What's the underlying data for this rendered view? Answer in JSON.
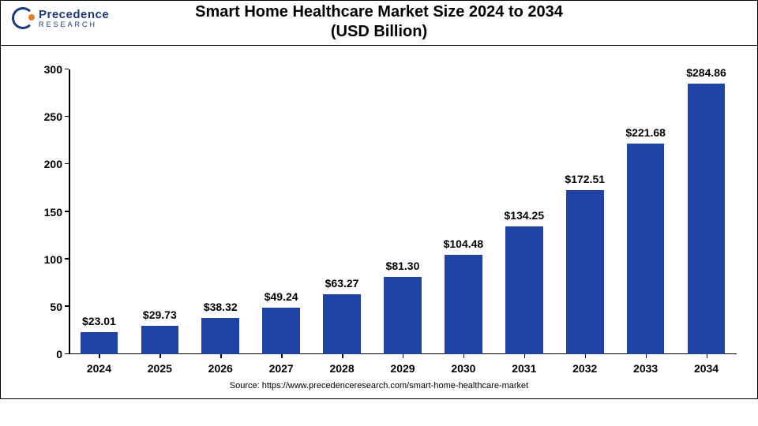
{
  "logo": {
    "line1": "Precedence",
    "line2": "RESEARCH"
  },
  "title_line1": "Smart Home Healthcare Market Size 2024 to 2034",
  "title_line2": "(USD Billion)",
  "title_fontsize": 20,
  "source": "Source: https://www.precedenceresearch.com/smart-home-healthcare-market",
  "chart": {
    "type": "bar",
    "categories": [
      "2024",
      "2025",
      "2026",
      "2027",
      "2028",
      "2029",
      "2030",
      "2031",
      "2032",
      "2033",
      "2034"
    ],
    "values": [
      23.01,
      29.73,
      38.32,
      49.24,
      63.27,
      81.3,
      104.48,
      134.25,
      172.51,
      221.68,
      284.86
    ],
    "value_labels": [
      "$23.01",
      "$29.73",
      "$38.32",
      "$49.24",
      "$63.27",
      "$81.30",
      "$104.48",
      "$134.25",
      "$172.51",
      "$221.68",
      "$284.86"
    ],
    "bar_color": "#2142a6",
    "ylim": [
      0,
      300
    ],
    "ytick_step": 50,
    "yticks": [
      0,
      50,
      100,
      150,
      200,
      250,
      300
    ],
    "label_fontsize": 14,
    "value_label_fontsize": 14,
    "axis_color": "#000000",
    "background_color": "#ffffff",
    "bar_width_ratio": 0.62
  }
}
